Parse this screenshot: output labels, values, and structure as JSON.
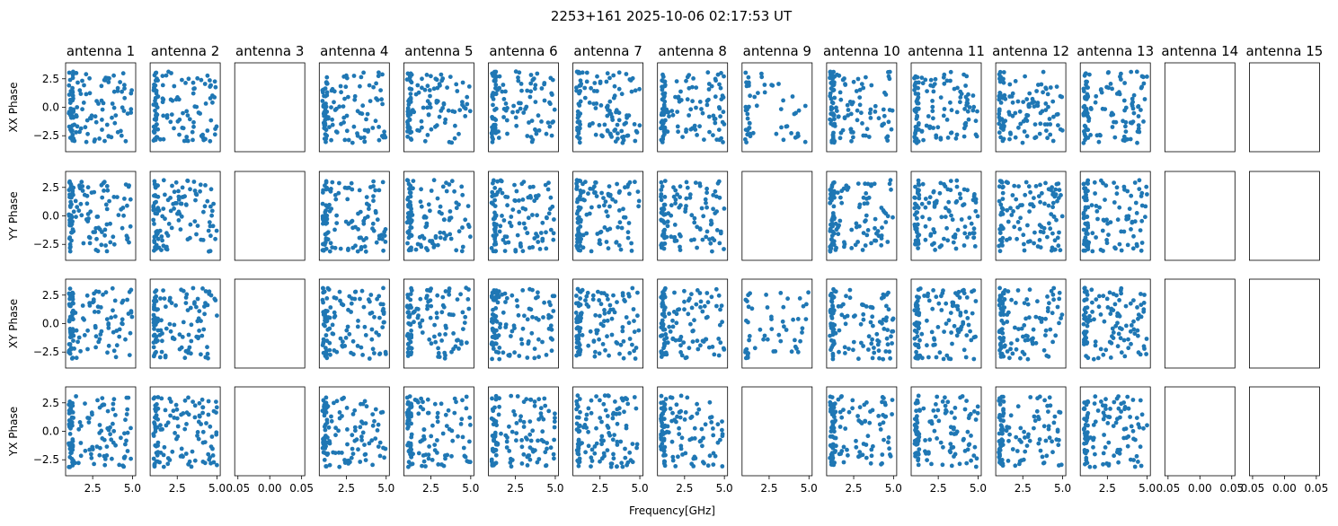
{
  "figure": {
    "suptitle": "2253+161 2025-10-06 02:17:53 UT",
    "xlabel": "Frequency[GHz]"
  },
  "colors": {
    "points": "#1f77b4",
    "frame": "#000000"
  },
  "chart_data": {
    "type": "scatter",
    "layout": "grid 4 rows x 15 columns, shared axes",
    "columns": [
      "antenna 1",
      "antenna 2",
      "antenna 3",
      "antenna 4",
      "antenna 5",
      "antenna 6",
      "antenna 7",
      "antenna 8",
      "antenna 9",
      "antenna 10",
      "antenna 11",
      "antenna 12",
      "antenna 13",
      "antenna 14",
      "antenna 15"
    ],
    "rows": [
      "XX Phase",
      "YY Phase",
      "XY Phase",
      "YX Phase"
    ],
    "xlim": [
      0.8,
      5.2
    ],
    "xticks": [
      2.5,
      5.0
    ],
    "xtick_labels": [
      "2.5",
      "5.0"
    ],
    "empty_xlim": [
      -0.055,
      0.055
    ],
    "empty_xticks": [
      -0.05,
      0.0,
      0.05
    ],
    "empty_xtick_labels": [
      "0.05",
      "0.00",
      "0.05"
    ],
    "ylim": [
      -3.9,
      3.9
    ],
    "yticks": [
      2.5,
      0.0,
      -2.5
    ],
    "ytick_labels": [
      "2.5",
      "0.0",
      "−2.5"
    ],
    "frequency_range_ghz": [
      1.0,
      5.0
    ],
    "phase_range_rad": [
      -3.14,
      3.14
    ],
    "empty_columns": [
      "antenna 3",
      "antenna 14",
      "antenna 15"
    ],
    "empty_panels": [
      {
        "antenna": "antenna 9",
        "row": "YY Phase"
      },
      {
        "antenna": "antenna 9",
        "row": "YX Phase"
      }
    ],
    "sparse_panels": [
      {
        "antenna": "antenna 9",
        "row": "XX Phase"
      },
      {
        "antenna": "antenna 9",
        "row": "XY Phase"
      }
    ],
    "points_per_panel": 120,
    "sparse_points_per_panel": 55,
    "point_distribution": "phases roughly uniform in [-pi, pi]; frequencies clustered near 1-1.3 GHz with remainder uniform to 5 GHz",
    "grid": false,
    "legend": "none"
  }
}
